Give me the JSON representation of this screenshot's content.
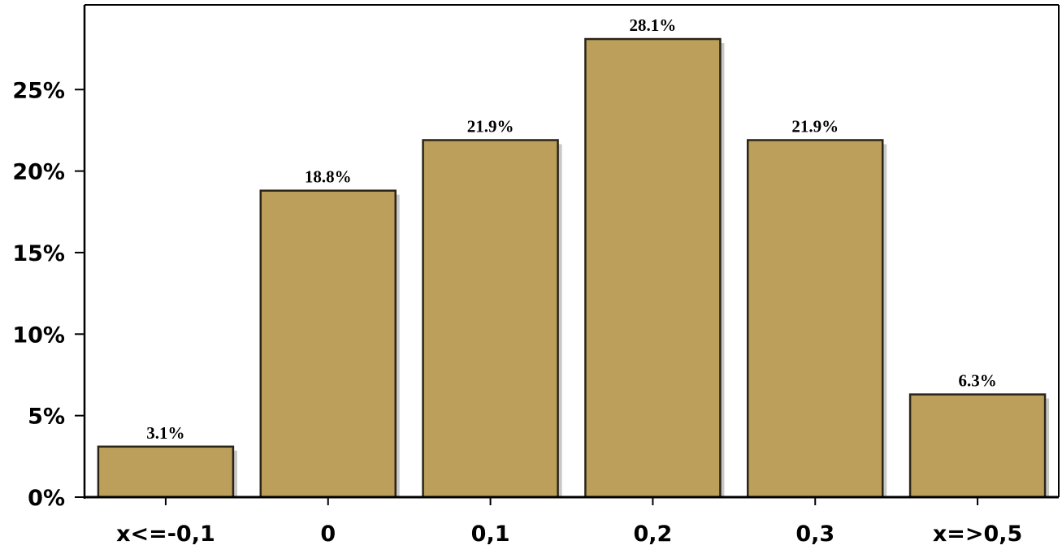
{
  "chart_data": {
    "type": "bar",
    "categories": [
      "x<=-0,1",
      "0",
      "0,1",
      "0,2",
      "0,3",
      "x=>0,5"
    ],
    "values": [
      3.1,
      18.8,
      21.9,
      28.1,
      21.9,
      6.3
    ],
    "data_labels": [
      "3.1%",
      "18.8%",
      "21.9%",
      "28.1%",
      "21.9%",
      "6.3%"
    ],
    "ylim": [
      0,
      30
    ],
    "y_ticks": [
      0,
      5,
      10,
      15,
      20,
      25
    ],
    "y_tick_labels": [
      "0%",
      "5%",
      "10%",
      "15%",
      "20%",
      "25%"
    ],
    "title": "",
    "xlabel": "",
    "ylabel": "",
    "grid": false,
    "legend": "none",
    "colors": {
      "bar_fill": "#bb9f5a",
      "bar_stroke": "#2b2518",
      "bar_shadow": "#c8c8c8",
      "axis": "#000000"
    }
  }
}
